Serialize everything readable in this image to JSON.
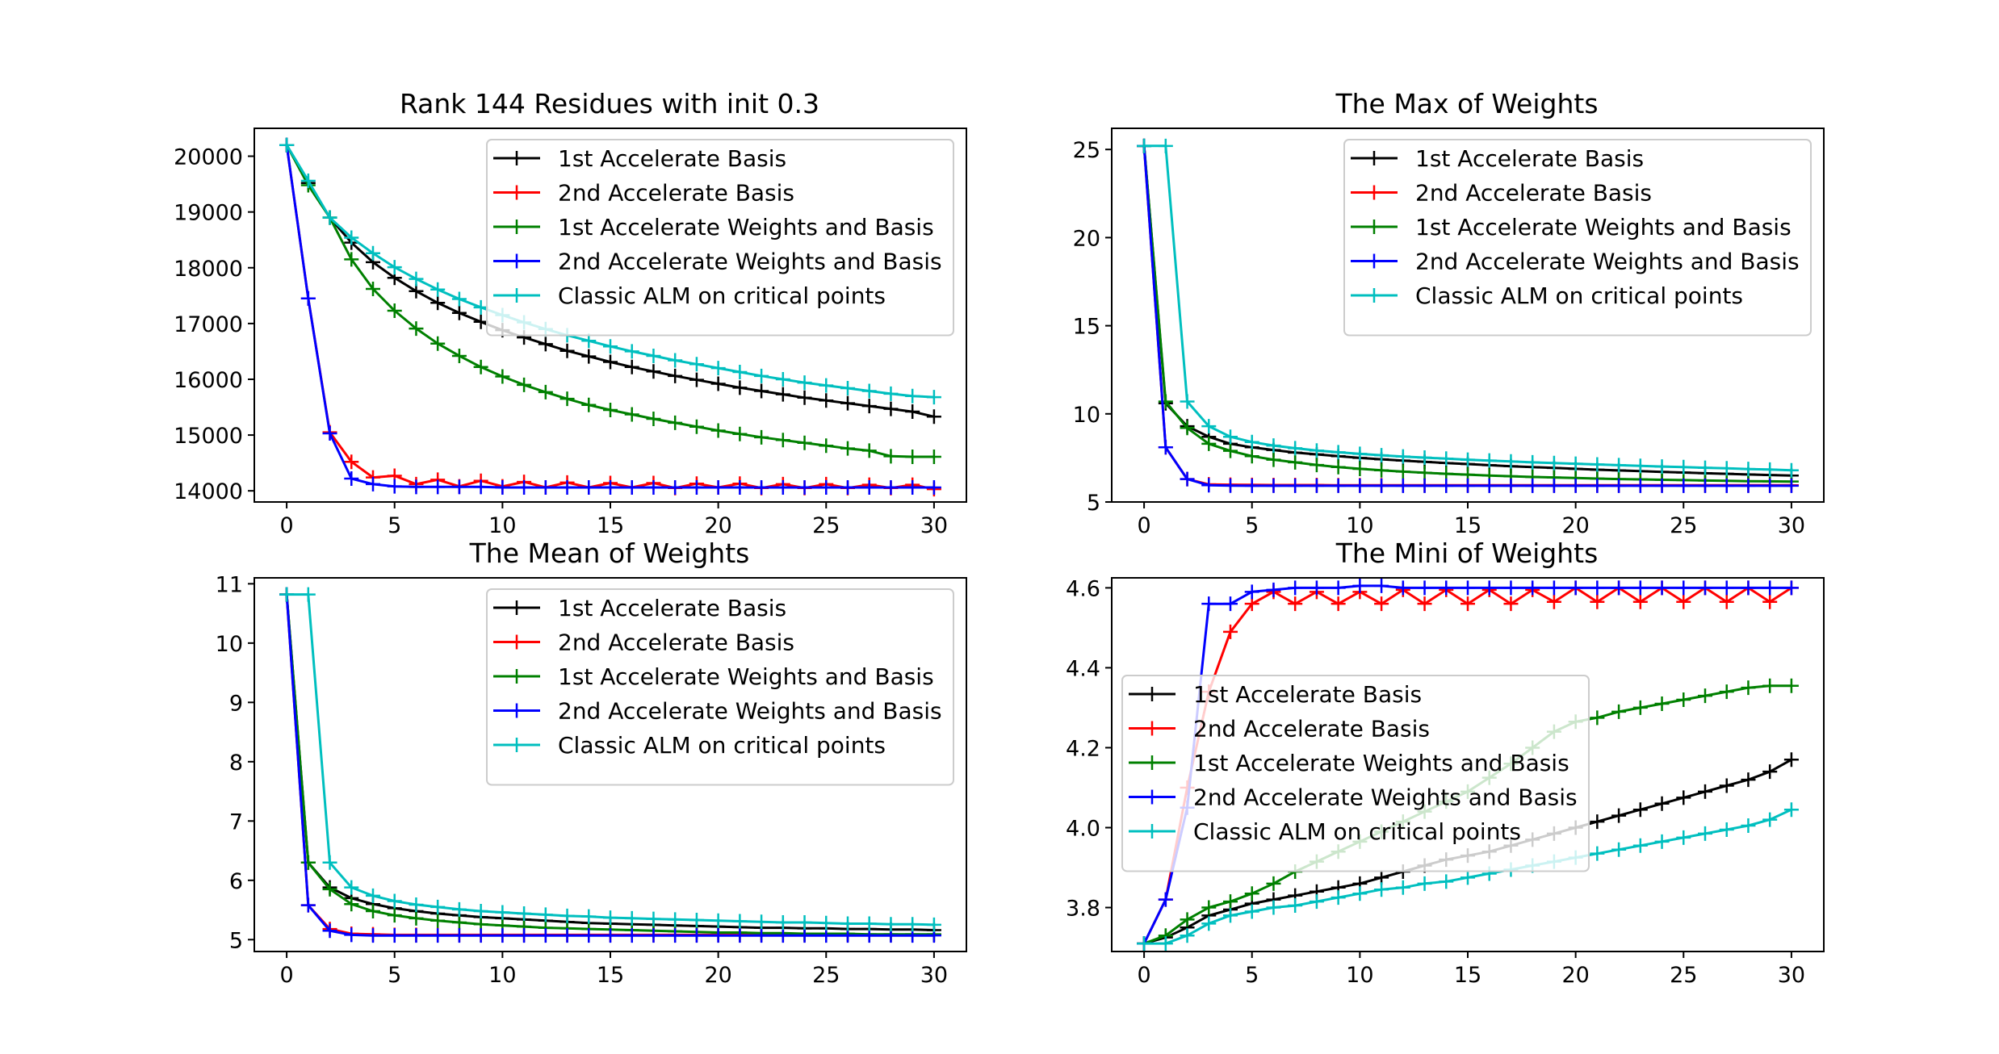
{
  "series_meta": [
    {
      "name": "1st Accelerate Basis",
      "color": "#000000"
    },
    {
      "name": "2nd Accelerate Basis",
      "color": "#ff0000"
    },
    {
      "name": "1st Accelerate Weights and Basis",
      "color": "#008000"
    },
    {
      "name": "2nd Accelerate Weights and Basis",
      "color": "#0000ff"
    },
    {
      "name": "Classic ALM on critical points",
      "color": "#00bfbf"
    }
  ],
  "chart_data": [
    {
      "type": "line",
      "title": "Rank 144 Residues with init 0.3",
      "xlabel": "",
      "ylabel": "",
      "xlim": [
        -1.5,
        31.5
      ],
      "ylim": [
        13800,
        20500
      ],
      "xticks": [
        0,
        5,
        10,
        15,
        20,
        25,
        30
      ],
      "yticks": [
        14000,
        15000,
        16000,
        17000,
        18000,
        19000,
        20000
      ],
      "grid": false,
      "legend_position": "upper-right",
      "x": [
        0,
        1,
        2,
        3,
        4,
        5,
        6,
        7,
        8,
        9,
        10,
        11,
        12,
        13,
        14,
        15,
        16,
        17,
        18,
        19,
        20,
        21,
        22,
        23,
        24,
        25,
        26,
        27,
        28,
        29,
        30
      ],
      "series": [
        {
          "name": "1st Accelerate Basis",
          "values": [
            20200,
            19520,
            18900,
            18450,
            18100,
            17820,
            17580,
            17370,
            17190,
            17030,
            16880,
            16750,
            16630,
            16510,
            16410,
            16310,
            16220,
            16140,
            16060,
            15990,
            15920,
            15850,
            15790,
            15730,
            15670,
            15620,
            15570,
            15520,
            15470,
            15420,
            15330
          ]
        },
        {
          "name": "2nd Accelerate Basis",
          "values": [
            20200,
            17450,
            15050,
            14520,
            14240,
            14270,
            14120,
            14200,
            14080,
            14180,
            14080,
            14160,
            14060,
            14150,
            14060,
            14140,
            14060,
            14140,
            14050,
            14130,
            14060,
            14130,
            14050,
            14120,
            14050,
            14120,
            14050,
            14110,
            14050,
            14110,
            14030
          ]
        },
        {
          "name": "1st Accelerate Weights and Basis",
          "values": [
            20200,
            19480,
            18900,
            18150,
            17620,
            17230,
            16910,
            16640,
            16420,
            16220,
            16050,
            15900,
            15770,
            15650,
            15540,
            15450,
            15370,
            15290,
            15220,
            15150,
            15080,
            15020,
            14960,
            14910,
            14860,
            14810,
            14760,
            14720,
            14620,
            14610,
            14610
          ]
        },
        {
          "name": "2nd Accelerate Weights and Basis",
          "values": [
            20200,
            17450,
            15030,
            14220,
            14120,
            14080,
            14070,
            14070,
            14070,
            14070,
            14060,
            14060,
            14060,
            14060,
            14060,
            14060,
            14060,
            14060,
            14060,
            14060,
            14060,
            14060,
            14060,
            14060,
            14060,
            14060,
            14060,
            14060,
            14060,
            14060,
            14060
          ]
        },
        {
          "name": "Classic ALM on critical points",
          "values": [
            20200,
            19560,
            18900,
            18540,
            18260,
            18010,
            17800,
            17610,
            17440,
            17290,
            17150,
            17020,
            16900,
            16790,
            16690,
            16590,
            16500,
            16420,
            16340,
            16270,
            16200,
            16130,
            16060,
            16000,
            15940,
            15890,
            15840,
            15790,
            15740,
            15700,
            15680
          ]
        }
      ]
    },
    {
      "type": "line",
      "title": "The Max of Weights",
      "xlabel": "",
      "ylabel": "",
      "xlim": [
        -1.5,
        31.5
      ],
      "ylim": [
        5.0,
        26.2
      ],
      "xticks": [
        0,
        5,
        10,
        15,
        20,
        25,
        30
      ],
      "yticks": [
        5,
        10,
        15,
        20,
        25
      ],
      "grid": false,
      "legend_position": "upper-right",
      "x": [
        0,
        1,
        2,
        3,
        4,
        5,
        6,
        7,
        8,
        9,
        10,
        11,
        12,
        13,
        14,
        15,
        16,
        17,
        18,
        19,
        20,
        21,
        22,
        23,
        24,
        25,
        26,
        27,
        28,
        29,
        30
      ],
      "series": [
        {
          "name": "1st Accelerate Basis",
          "values": [
            25.2,
            10.6,
            9.3,
            8.7,
            8.3,
            8.1,
            7.95,
            7.8,
            7.7,
            7.6,
            7.5,
            7.42,
            7.35,
            7.28,
            7.21,
            7.15,
            7.09,
            7.03,
            6.98,
            6.93,
            6.88,
            6.83,
            6.79,
            6.75,
            6.71,
            6.67,
            6.63,
            6.6,
            6.56,
            6.53,
            6.5
          ]
        },
        {
          "name": "2nd Accelerate Basis",
          "values": [
            25.2,
            8.1,
            6.3,
            6.0,
            5.98,
            5.97,
            5.96,
            5.96,
            5.96,
            5.95,
            5.95,
            5.95,
            5.95,
            5.95,
            5.95,
            5.95,
            5.95,
            5.95,
            5.95,
            5.95,
            5.95,
            5.95,
            5.95,
            5.95,
            5.95,
            5.95,
            5.95,
            5.95,
            5.95,
            5.95,
            5.95
          ]
        },
        {
          "name": "1st Accelerate Weights and Basis",
          "values": [
            25.2,
            10.7,
            9.2,
            8.3,
            7.9,
            7.6,
            7.4,
            7.25,
            7.1,
            6.98,
            6.88,
            6.8,
            6.72,
            6.66,
            6.6,
            6.55,
            6.5,
            6.46,
            6.42,
            6.39,
            6.36,
            6.33,
            6.3,
            6.28,
            6.26,
            6.24,
            6.22,
            6.2,
            6.18,
            6.17,
            6.16
          ]
        },
        {
          "name": "2nd Accelerate Weights and Basis",
          "values": [
            25.2,
            8.1,
            6.3,
            5.95,
            5.93,
            5.92,
            5.92,
            5.92,
            5.92,
            5.92,
            5.92,
            5.92,
            5.92,
            5.92,
            5.92,
            5.92,
            5.92,
            5.92,
            5.92,
            5.92,
            5.92,
            5.92,
            5.92,
            5.92,
            5.92,
            5.92,
            5.92,
            5.92,
            5.92,
            5.92,
            5.92
          ]
        },
        {
          "name": "Classic ALM on critical points",
          "values": [
            25.2,
            25.2,
            10.7,
            9.3,
            8.7,
            8.4,
            8.2,
            8.05,
            7.92,
            7.82,
            7.73,
            7.65,
            7.58,
            7.52,
            7.46,
            7.4,
            7.35,
            7.3,
            7.25,
            7.21,
            7.17,
            7.13,
            7.09,
            7.05,
            7.01,
            6.98,
            6.94,
            6.91,
            6.87,
            6.84,
            6.8
          ]
        }
      ]
    },
    {
      "type": "line",
      "title": "The Mean of Weights",
      "xlabel": "",
      "ylabel": "",
      "xlim": [
        -1.5,
        31.5
      ],
      "ylim": [
        4.8,
        11.1
      ],
      "xticks": [
        0,
        5,
        10,
        15,
        20,
        25,
        30
      ],
      "yticks": [
        5,
        6,
        7,
        8,
        9,
        10,
        11
      ],
      "grid": false,
      "legend_position": "upper-right",
      "x": [
        0,
        1,
        2,
        3,
        4,
        5,
        6,
        7,
        8,
        9,
        10,
        11,
        12,
        13,
        14,
        15,
        16,
        17,
        18,
        19,
        20,
        21,
        22,
        23,
        24,
        25,
        26,
        27,
        28,
        29,
        30
      ],
      "series": [
        {
          "name": "1st Accelerate Basis",
          "values": [
            10.82,
            6.3,
            5.88,
            5.7,
            5.6,
            5.53,
            5.48,
            5.44,
            5.41,
            5.38,
            5.36,
            5.34,
            5.32,
            5.3,
            5.28,
            5.27,
            5.26,
            5.25,
            5.24,
            5.23,
            5.22,
            5.21,
            5.2,
            5.2,
            5.19,
            5.19,
            5.18,
            5.18,
            5.17,
            5.17,
            5.16
          ]
        },
        {
          "name": "2nd Accelerate Basis",
          "values": [
            10.82,
            5.58,
            5.18,
            5.1,
            5.09,
            5.08,
            5.08,
            5.08,
            5.08,
            5.08,
            5.08,
            5.08,
            5.08,
            5.08,
            5.08,
            5.08,
            5.08,
            5.08,
            5.08,
            5.08,
            5.08,
            5.08,
            5.08,
            5.08,
            5.08,
            5.08,
            5.08,
            5.08,
            5.08,
            5.08,
            5.08
          ]
        },
        {
          "name": "1st Accelerate Weights and Basis",
          "values": [
            10.82,
            6.3,
            5.85,
            5.6,
            5.48,
            5.41,
            5.36,
            5.32,
            5.29,
            5.26,
            5.24,
            5.22,
            5.2,
            5.19,
            5.18,
            5.17,
            5.16,
            5.15,
            5.14,
            5.13,
            5.12,
            5.12,
            5.11,
            5.11,
            5.1,
            5.1,
            5.1,
            5.09,
            5.09,
            5.09,
            5.09
          ]
        },
        {
          "name": "2nd Accelerate Weights and Basis",
          "values": [
            10.82,
            5.58,
            5.15,
            5.08,
            5.07,
            5.07,
            5.07,
            5.07,
            5.07,
            5.07,
            5.07,
            5.07,
            5.07,
            5.07,
            5.07,
            5.07,
            5.07,
            5.07,
            5.07,
            5.07,
            5.07,
            5.07,
            5.07,
            5.07,
            5.07,
            5.07,
            5.07,
            5.07,
            5.07,
            5.07,
            5.07
          ]
        },
        {
          "name": "Classic ALM on critical points",
          "values": [
            10.82,
            10.82,
            6.3,
            5.88,
            5.74,
            5.65,
            5.59,
            5.55,
            5.51,
            5.48,
            5.46,
            5.44,
            5.42,
            5.4,
            5.39,
            5.37,
            5.36,
            5.35,
            5.34,
            5.33,
            5.32,
            5.31,
            5.3,
            5.29,
            5.29,
            5.28,
            5.27,
            5.27,
            5.26,
            5.26,
            5.25
          ]
        }
      ]
    },
    {
      "type": "line",
      "title": "The Mini of Weights",
      "xlabel": "",
      "ylabel": "",
      "xlim": [
        -1.5,
        31.5
      ],
      "ylim": [
        3.69,
        4.625
      ],
      "xticks": [
        0,
        5,
        10,
        15,
        20,
        25,
        30
      ],
      "yticks": [
        3.8,
        4.0,
        4.2,
        4.4,
        4.6
      ],
      "ytick_format": "1dp",
      "grid": false,
      "legend_position": "center-left",
      "x": [
        0,
        1,
        2,
        3,
        4,
        5,
        6,
        7,
        8,
        9,
        10,
        11,
        12,
        13,
        14,
        15,
        16,
        17,
        18,
        19,
        20,
        21,
        22,
        23,
        24,
        25,
        26,
        27,
        28,
        29,
        30
      ],
      "series": [
        {
          "name": "1st Accelerate Basis",
          "values": [
            3.71,
            3.725,
            3.75,
            3.78,
            3.795,
            3.81,
            3.82,
            3.83,
            3.84,
            3.85,
            3.86,
            3.875,
            3.89,
            3.905,
            3.92,
            3.93,
            3.94,
            3.955,
            3.97,
            3.985,
            4.0,
            4.015,
            4.03,
            4.045,
            4.06,
            4.075,
            4.09,
            4.105,
            4.12,
            4.14,
            4.17
          ]
        },
        {
          "name": "2nd Accelerate Basis",
          "values": [
            3.71,
            3.82,
            4.1,
            4.34,
            4.49,
            4.56,
            4.59,
            4.56,
            4.59,
            4.56,
            4.59,
            4.56,
            4.595,
            4.56,
            4.595,
            4.56,
            4.595,
            4.56,
            4.595,
            4.565,
            4.6,
            4.565,
            4.6,
            4.565,
            4.6,
            4.565,
            4.6,
            4.565,
            4.6,
            4.565,
            4.6
          ]
        },
        {
          "name": "1st Accelerate Weights and Basis",
          "values": [
            3.71,
            3.73,
            3.77,
            3.8,
            3.815,
            3.835,
            3.86,
            3.89,
            3.915,
            3.94,
            3.965,
            3.99,
            4.015,
            4.04,
            4.065,
            4.09,
            4.125,
            4.16,
            4.2,
            4.24,
            4.265,
            4.275,
            4.29,
            4.3,
            4.31,
            4.32,
            4.33,
            4.34,
            4.35,
            4.355,
            4.355
          ]
        },
        {
          "name": "2nd Accelerate Weights and Basis",
          "values": [
            3.71,
            3.82,
            4.05,
            4.56,
            4.56,
            4.59,
            4.595,
            4.6,
            4.6,
            4.6,
            4.605,
            4.605,
            4.6,
            4.6,
            4.6,
            4.6,
            4.6,
            4.6,
            4.6,
            4.6,
            4.6,
            4.6,
            4.6,
            4.6,
            4.6,
            4.6,
            4.6,
            4.6,
            4.6,
            4.6,
            4.6
          ]
        },
        {
          "name": "Classic ALM on critical points",
          "values": [
            3.71,
            3.71,
            3.73,
            3.76,
            3.78,
            3.79,
            3.8,
            3.805,
            3.815,
            3.825,
            3.835,
            3.845,
            3.85,
            3.86,
            3.865,
            3.875,
            3.885,
            3.895,
            3.905,
            3.915,
            3.925,
            3.935,
            3.945,
            3.955,
            3.965,
            3.975,
            3.985,
            3.995,
            4.005,
            4.02,
            4.045
          ]
        }
      ]
    }
  ]
}
